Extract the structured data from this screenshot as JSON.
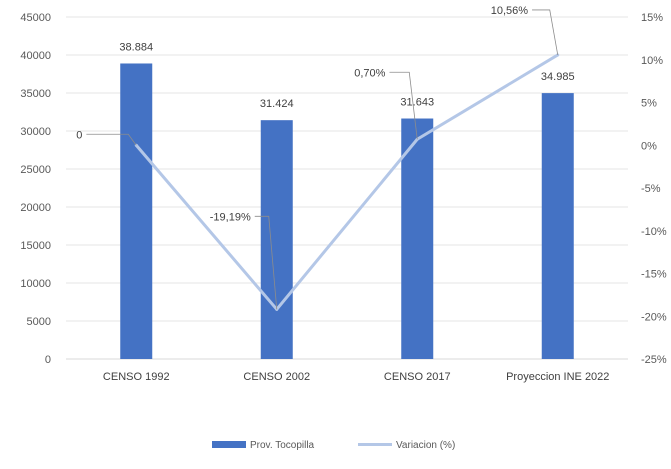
{
  "chart_data": {
    "type": "bar+line",
    "title": "",
    "categories": [
      "CENSO 1992",
      "CENSO 2002",
      "CENSO 2017",
      "Proyeccion INE 2022"
    ],
    "series": [
      {
        "name": "Prov. Tocopilla",
        "type": "bar",
        "axis": "left",
        "color": "#4472C4",
        "values": [
          38884,
          31424,
          31643,
          34985
        ],
        "labels": [
          "38.884",
          "31.424",
          "31.643",
          "34.985"
        ]
      },
      {
        "name": "Variacion (%)",
        "type": "line",
        "axis": "right",
        "color": "#B4C7E7",
        "values": [
          0,
          -19.19,
          0.7,
          10.56
        ],
        "labels": [
          "0",
          "-19,19%",
          "0,70%",
          "10,56%"
        ]
      }
    ],
    "y_left": {
      "ylim": [
        0,
        45000
      ],
      "ticks": [
        0,
        5000,
        10000,
        15000,
        20000,
        25000,
        30000,
        35000,
        40000,
        45000
      ],
      "tick_labels": [
        "0",
        "5000",
        "10000",
        "15000",
        "20000",
        "25000",
        "30000",
        "35000",
        "40000",
        "45000"
      ]
    },
    "y_right": {
      "ylim": [
        -25,
        15
      ],
      "ticks": [
        -25,
        -20,
        -15,
        -10,
        -5,
        0,
        5,
        10,
        15
      ],
      "tick_labels": [
        "-25%",
        "-20%",
        "-15%",
        "-10%",
        "-5%",
        "0%",
        "5%",
        "10%",
        "15%"
      ]
    },
    "grid": true,
    "legend": "bottom"
  }
}
